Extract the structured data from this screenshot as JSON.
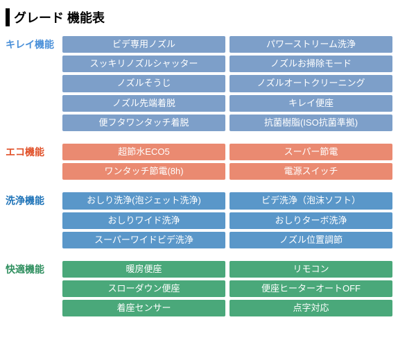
{
  "title": "グレード 機能表",
  "sections": [
    {
      "label": "キレイ機能",
      "label_color": "#4a90d9",
      "pill_bg": "#7d9fc9",
      "pill_fg": "#ffffff",
      "items": [
        "ビデ専用ノズル",
        "パワーストリーム洗浄",
        "スッキリノズルシャッター",
        "ノズルお掃除モード",
        "ノズルそうじ",
        "ノズルオートクリーニング",
        "ノズル先端着脱",
        "キレイ便座",
        "便フタワンタッチ着脱",
        "抗菌樹脂(ISO抗菌準拠)"
      ]
    },
    {
      "label": "エコ機能",
      "label_color": "#e05028",
      "pill_bg": "#ea8a71",
      "pill_fg": "#ffffff",
      "items": [
        "超節水ECO5",
        "スーパー節電",
        "ワンタッチ節電(8h)",
        "電源スイッチ"
      ]
    },
    {
      "label": "洗浄機能",
      "label_color": "#1e73b8",
      "pill_bg": "#5a97c9",
      "pill_fg": "#ffffff",
      "items": [
        "おしり洗浄(泡ジェット洗浄)",
        "ビデ洗浄（泡沫ソフト）",
        "おしりワイド洗浄",
        "おしりターボ洗浄",
        "スーパーワイドビデ洗浄",
        "ノズル位置調節"
      ]
    },
    {
      "label": "快適機能",
      "label_color": "#2f8f5f",
      "pill_bg": "#4aa87a",
      "pill_fg": "#ffffff",
      "items": [
        "暖房便座",
        "リモコン",
        "スローダウン便座",
        "便座ヒーターオートOFF",
        "着座センサー",
        "点字対応"
      ]
    }
  ]
}
